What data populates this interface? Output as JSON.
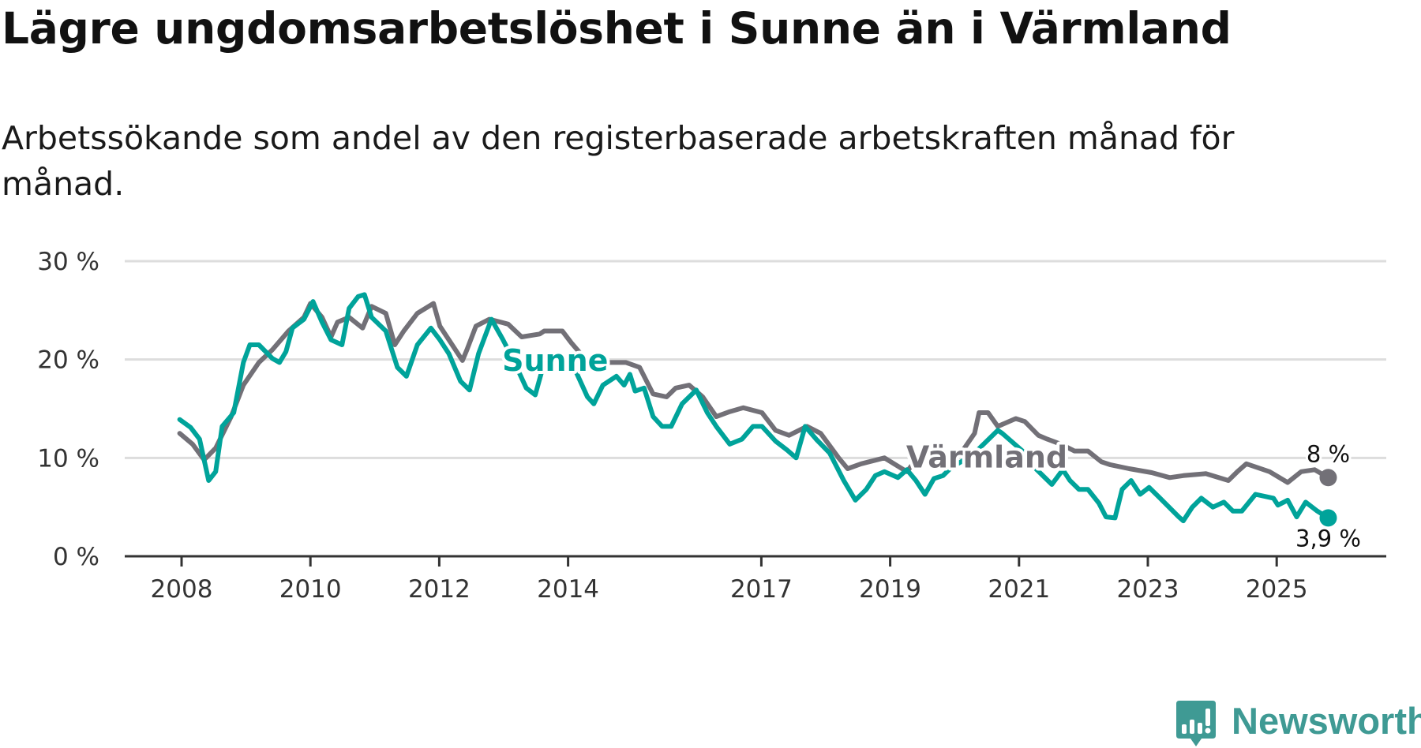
{
  "title": "Lägre ungdomsarbetslöshet i Sunne än i Värmland",
  "subtitle": "Arbetssökande som andel av den registerbaserade arbetskraften månad för månad.",
  "brand": "Newsworthy",
  "colors": {
    "sunne": "#00a39a",
    "varmland": "#727077",
    "grid": "#dddddd",
    "axis": "#333333",
    "brand": "#3f9a94"
  },
  "chart_data": {
    "type": "line",
    "title": "Lägre ungdomsarbetslöshet i Sunne än i Värmland",
    "xlabel": "",
    "ylabel": "",
    "xlim": [
      2007.6,
      2026.6
    ],
    "ylim": [
      0,
      30
    ],
    "grid": true,
    "y_ticks": [
      {
        "v": 0,
        "label": "0 %"
      },
      {
        "v": 10,
        "label": "10 %"
      },
      {
        "v": 20,
        "label": "20 %"
      },
      {
        "v": 30,
        "label": "30 %"
      }
    ],
    "x_ticks": [
      {
        "v": 2008,
        "label": "2008"
      },
      {
        "v": 2010,
        "label": "2010"
      },
      {
        "v": 2012,
        "label": "2012"
      },
      {
        "v": 2014,
        "label": "2014"
      },
      {
        "v": 2017,
        "label": "2017"
      },
      {
        "v": 2019,
        "label": "2019"
      },
      {
        "v": 2021,
        "label": "2021"
      },
      {
        "v": 2023,
        "label": "2023"
      },
      {
        "v": 2025,
        "label": "2025"
      }
    ],
    "series": [
      {
        "name": "Värmland",
        "color": "#727077",
        "end_label": "8 %",
        "label_pos": [
          2020.5,
          10.0
        ],
        "points": [
          [
            2007.97,
            12.5
          ],
          [
            2008.17,
            11.4
          ],
          [
            2008.35,
            9.8
          ],
          [
            2008.53,
            11
          ],
          [
            2008.77,
            14.2
          ],
          [
            2008.96,
            17.4
          ],
          [
            2009.2,
            19.7
          ],
          [
            2009.41,
            21
          ],
          [
            2009.66,
            22.9
          ],
          [
            2009.9,
            24.3
          ],
          [
            2010.0,
            25.7
          ],
          [
            2010.18,
            24.3
          ],
          [
            2010.32,
            22.3
          ],
          [
            2010.42,
            23.8
          ],
          [
            2010.6,
            24.3
          ],
          [
            2010.81,
            23.2
          ],
          [
            2010.95,
            25.4
          ],
          [
            2011.17,
            24.7
          ],
          [
            2011.31,
            21.5
          ],
          [
            2011.45,
            22.9
          ],
          [
            2011.66,
            24.7
          ],
          [
            2011.91,
            25.7
          ],
          [
            2012.01,
            23.4
          ],
          [
            2012.15,
            22
          ],
          [
            2012.36,
            19.9
          ],
          [
            2012.43,
            21
          ],
          [
            2012.57,
            23.4
          ],
          [
            2012.78,
            24.1
          ],
          [
            2013.07,
            23.6
          ],
          [
            2013.28,
            22.3
          ],
          [
            2013.56,
            22.6
          ],
          [
            2013.63,
            22.9
          ],
          [
            2013.91,
            22.9
          ],
          [
            2014.05,
            21.7
          ],
          [
            2014.26,
            20.1
          ],
          [
            2014.47,
            18.8
          ],
          [
            2014.61,
            19.7
          ],
          [
            2014.9,
            19.7
          ],
          [
            2015.11,
            19.2
          ],
          [
            2015.32,
            16.5
          ],
          [
            2015.53,
            16.2
          ],
          [
            2015.67,
            17.1
          ],
          [
            2015.88,
            17.4
          ],
          [
            2016.09,
            16.2
          ],
          [
            2016.3,
            14.2
          ],
          [
            2016.51,
            14.7
          ],
          [
            2016.72,
            15.1
          ],
          [
            2017.01,
            14.6
          ],
          [
            2017.22,
            12.8
          ],
          [
            2017.43,
            12.3
          ],
          [
            2017.71,
            13.2
          ],
          [
            2017.92,
            12.5
          ],
          [
            2018.2,
            10
          ],
          [
            2018.34,
            8.9
          ],
          [
            2018.55,
            9.4
          ],
          [
            2018.91,
            10
          ],
          [
            2019.26,
            8.6
          ],
          [
            2019.4,
            9.8
          ],
          [
            2019.68,
            10
          ],
          [
            2020.1,
            10.5
          ],
          [
            2020.31,
            12.5
          ],
          [
            2020.38,
            14.6
          ],
          [
            2020.52,
            14.6
          ],
          [
            2020.67,
            13.2
          ],
          [
            2020.95,
            14
          ],
          [
            2021.09,
            13.7
          ],
          [
            2021.3,
            12.3
          ],
          [
            2021.44,
            11.9
          ],
          [
            2021.65,
            11.4
          ],
          [
            2021.86,
            10.7
          ],
          [
            2022.07,
            10.7
          ],
          [
            2022.28,
            9.6
          ],
          [
            2022.42,
            9.3
          ],
          [
            2022.71,
            8.9
          ],
          [
            2023.06,
            8.5
          ],
          [
            2023.34,
            8
          ],
          [
            2023.55,
            8.2
          ],
          [
            2023.9,
            8.4
          ],
          [
            2024.25,
            7.7
          ],
          [
            2024.39,
            8.6
          ],
          [
            2024.53,
            9.4
          ],
          [
            2024.89,
            8.6
          ],
          [
            2025.17,
            7.5
          ],
          [
            2025.38,
            8.6
          ],
          [
            2025.59,
            8.8
          ],
          [
            2025.8,
            8
          ]
        ]
      },
      {
        "name": "Sunne",
        "color": "#00a39a",
        "end_label": "3,9 %",
        "label_pos": [
          2013.8,
          19.8
        ],
        "points": [
          [
            2007.97,
            13.9
          ],
          [
            2008.14,
            13.1
          ],
          [
            2008.28,
            11.9
          ],
          [
            2008.42,
            7.7
          ],
          [
            2008.53,
            8.6
          ],
          [
            2008.63,
            13.2
          ],
          [
            2008.81,
            14.6
          ],
          [
            2008.96,
            19.7
          ],
          [
            2009.06,
            21.5
          ],
          [
            2009.2,
            21.5
          ],
          [
            2009.41,
            20.1
          ],
          [
            2009.52,
            19.7
          ],
          [
            2009.62,
            20.8
          ],
          [
            2009.72,
            23.2
          ],
          [
            2009.9,
            24.1
          ],
          [
            2010.04,
            25.9
          ],
          [
            2010.18,
            23.8
          ],
          [
            2010.32,
            22
          ],
          [
            2010.49,
            21.5
          ],
          [
            2010.6,
            25.2
          ],
          [
            2010.74,
            26.4
          ],
          [
            2010.84,
            26.6
          ],
          [
            2010.95,
            24.3
          ],
          [
            2011.17,
            22.9
          ],
          [
            2011.35,
            19.2
          ],
          [
            2011.49,
            18.3
          ],
          [
            2011.66,
            21.5
          ],
          [
            2011.87,
            23.2
          ],
          [
            2012.01,
            22
          ],
          [
            2012.15,
            20.6
          ],
          [
            2012.33,
            17.8
          ],
          [
            2012.47,
            16.9
          ],
          [
            2012.61,
            20.6
          ],
          [
            2012.81,
            24.1
          ],
          [
            2012.99,
            22
          ],
          [
            2013.14,
            20.1
          ],
          [
            2013.35,
            17.1
          ],
          [
            2013.49,
            16.4
          ],
          [
            2013.63,
            19.7
          ],
          [
            2013.91,
            19.7
          ],
          [
            2014.12,
            18.8
          ],
          [
            2014.3,
            16.2
          ],
          [
            2014.4,
            15.5
          ],
          [
            2014.54,
            17.4
          ],
          [
            2014.75,
            18.3
          ],
          [
            2014.87,
            17.4
          ],
          [
            2014.96,
            18.5
          ],
          [
            2015.04,
            16.8
          ],
          [
            2015.18,
            17.1
          ],
          [
            2015.32,
            14.2
          ],
          [
            2015.46,
            13.2
          ],
          [
            2015.6,
            13.2
          ],
          [
            2015.77,
            15.5
          ],
          [
            2015.99,
            16.9
          ],
          [
            2016.16,
            14.6
          ],
          [
            2016.3,
            13.2
          ],
          [
            2016.51,
            11.4
          ],
          [
            2016.7,
            11.9
          ],
          [
            2016.87,
            13.2
          ],
          [
            2017.01,
            13.2
          ],
          [
            2017.22,
            11.7
          ],
          [
            2017.4,
            10.8
          ],
          [
            2017.54,
            10
          ],
          [
            2017.68,
            13.2
          ],
          [
            2017.85,
            11.9
          ],
          [
            2018.06,
            10.5
          ],
          [
            2018.28,
            7.7
          ],
          [
            2018.46,
            5.7
          ],
          [
            2018.63,
            6.8
          ],
          [
            2018.77,
            8.2
          ],
          [
            2018.91,
            8.6
          ],
          [
            2019.12,
            8
          ],
          [
            2019.26,
            8.8
          ],
          [
            2019.4,
            7.7
          ],
          [
            2019.54,
            6.3
          ],
          [
            2019.68,
            7.9
          ],
          [
            2019.82,
            8.2
          ],
          [
            2019.96,
            9.1
          ],
          [
            2020.1,
            9.6
          ],
          [
            2020.31,
            10.5
          ],
          [
            2020.67,
            12.8
          ],
          [
            2020.74,
            12.5
          ],
          [
            2021.09,
            10.5
          ],
          [
            2021.23,
            9.1
          ],
          [
            2021.37,
            8.2
          ],
          [
            2021.51,
            7.3
          ],
          [
            2021.68,
            8.8
          ],
          [
            2021.79,
            7.7
          ],
          [
            2021.93,
            6.8
          ],
          [
            2022.07,
            6.8
          ],
          [
            2022.24,
            5.4
          ],
          [
            2022.35,
            4
          ],
          [
            2022.49,
            3.9
          ],
          [
            2022.6,
            6.8
          ],
          [
            2022.74,
            7.7
          ],
          [
            2022.88,
            6.3
          ],
          [
            2023.02,
            7
          ],
          [
            2023.19,
            5.9
          ],
          [
            2023.48,
            4
          ],
          [
            2023.55,
            3.6
          ],
          [
            2023.69,
            5
          ],
          [
            2023.83,
            5.9
          ],
          [
            2024.01,
            5
          ],
          [
            2024.18,
            5.5
          ],
          [
            2024.32,
            4.6
          ],
          [
            2024.46,
            4.6
          ],
          [
            2024.67,
            6.3
          ],
          [
            2024.95,
            5.9
          ],
          [
            2025.02,
            5.2
          ],
          [
            2025.17,
            5.7
          ],
          [
            2025.31,
            4
          ],
          [
            2025.45,
            5.5
          ],
          [
            2025.63,
            4.6
          ],
          [
            2025.8,
            3.9
          ]
        ]
      }
    ]
  }
}
